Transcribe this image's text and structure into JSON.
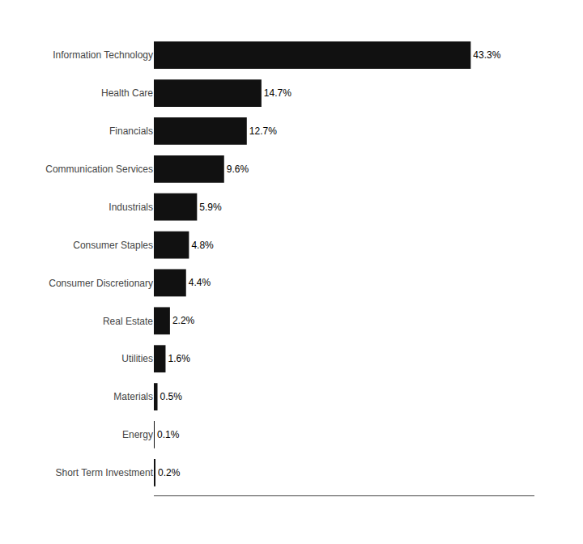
{
  "chart_data": {
    "type": "bar",
    "orientation": "horizontal",
    "categories": [
      "Short Term Investment",
      "Energy",
      "Materials",
      "Utilities",
      "Real Estate",
      "Consumer Discretionary",
      "Consumer Staples",
      "Industrials",
      "Communication Services",
      "Financials",
      "Health Care",
      "Information Technology"
    ],
    "values": [
      0.2,
      0.1,
      0.5,
      1.6,
      2.2,
      4.4,
      4.8,
      5.9,
      9.6,
      12.7,
      14.7,
      43.3
    ],
    "value_labels": [
      "0.2%",
      "0.1%",
      "0.5%",
      "1.6%",
      "2.2%",
      "4.4%",
      "4.8%",
      "5.9%",
      "9.6%",
      "12.7%",
      "14.7%",
      "43.3%"
    ],
    "color": "#111111",
    "xlim": [
      0,
      52
    ],
    "grid": false,
    "data_labels": true,
    "tick_labels": "y"
  }
}
